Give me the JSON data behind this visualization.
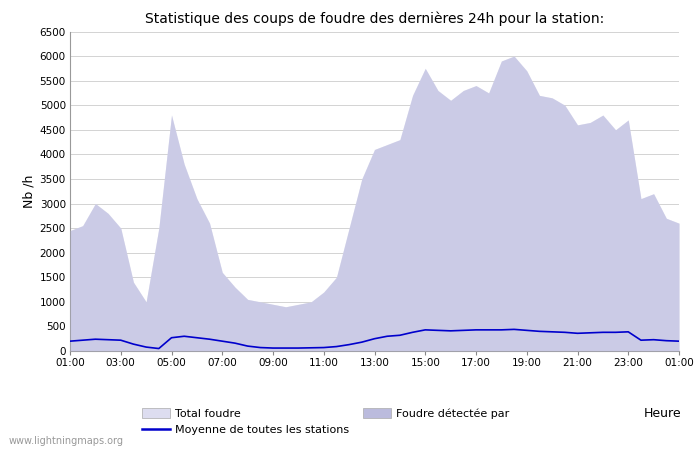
{
  "title": "Statistique des coups de foudre des dernières 24h pour la station:",
  "xlabel": "Heure",
  "ylabel": "Nb /h",
  "watermark": "www.lightningmaps.org",
  "xlim": [
    0,
    24
  ],
  "ylim": [
    0,
    6500
  ],
  "yticks": [
    0,
    500,
    1000,
    1500,
    2000,
    2500,
    3000,
    3500,
    4000,
    4500,
    5000,
    5500,
    6000,
    6500
  ],
  "xtick_labels": [
    "01:00",
    "03:00",
    "05:00",
    "07:00",
    "09:00",
    "11:00",
    "13:00",
    "15:00",
    "17:00",
    "19:00",
    "21:00",
    "23:00",
    "01:00"
  ],
  "xtick_positions": [
    0,
    2,
    4,
    6,
    8,
    10,
    12,
    14,
    16,
    18,
    20,
    22,
    24
  ],
  "bg_color": "#ffffff",
  "grid_color": "#cccccc",
  "fill_color_total": "#ddddf0",
  "fill_color_detected": "#bbbbdd",
  "line_color": "#0000cc",
  "legend_label_total": "Total foudre",
  "legend_label_detected": "Foudre détectée par",
  "legend_label_mean": "Moyenne de toutes les stations",
  "x_data": [
    0,
    0.5,
    1.0,
    1.5,
    2.0,
    2.5,
    3.0,
    3.5,
    4.0,
    4.5,
    5.0,
    5.5,
    6.0,
    6.5,
    7.0,
    7.5,
    8.0,
    8.5,
    9.0,
    9.5,
    10.0,
    10.5,
    11.0,
    11.5,
    12.0,
    12.5,
    13.0,
    13.5,
    14.0,
    14.5,
    15.0,
    15.5,
    16.0,
    16.5,
    17.0,
    17.5,
    18.0,
    18.5,
    19.0,
    19.5,
    20.0,
    20.5,
    21.0,
    21.5,
    22.0,
    22.5,
    23.0,
    23.5,
    24.0
  ],
  "total_foudre": [
    2450,
    2550,
    3000,
    2800,
    2500,
    1400,
    1000,
    2500,
    4800,
    3800,
    3100,
    2600,
    1600,
    1300,
    1050,
    1000,
    950,
    900,
    950,
    1000,
    1200,
    1500,
    2500,
    3500,
    4100,
    4200,
    4300,
    5200,
    5750,
    5300,
    5100,
    5300,
    5400,
    5250,
    5900,
    6000,
    5700,
    5200,
    5150,
    5000,
    4600,
    4650,
    4800,
    4500,
    4700,
    3100,
    3200,
    2700,
    2600
  ],
  "mean_line": [
    200,
    220,
    240,
    230,
    220,
    140,
    80,
    50,
    270,
    300,
    270,
    240,
    200,
    160,
    100,
    70,
    60,
    60,
    60,
    65,
    70,
    90,
    130,
    180,
    250,
    300,
    320,
    380,
    430,
    420,
    410,
    420,
    430,
    430,
    430,
    440,
    420,
    400,
    390,
    380,
    360,
    370,
    380,
    380,
    390,
    220,
    230,
    210,
    200
  ]
}
